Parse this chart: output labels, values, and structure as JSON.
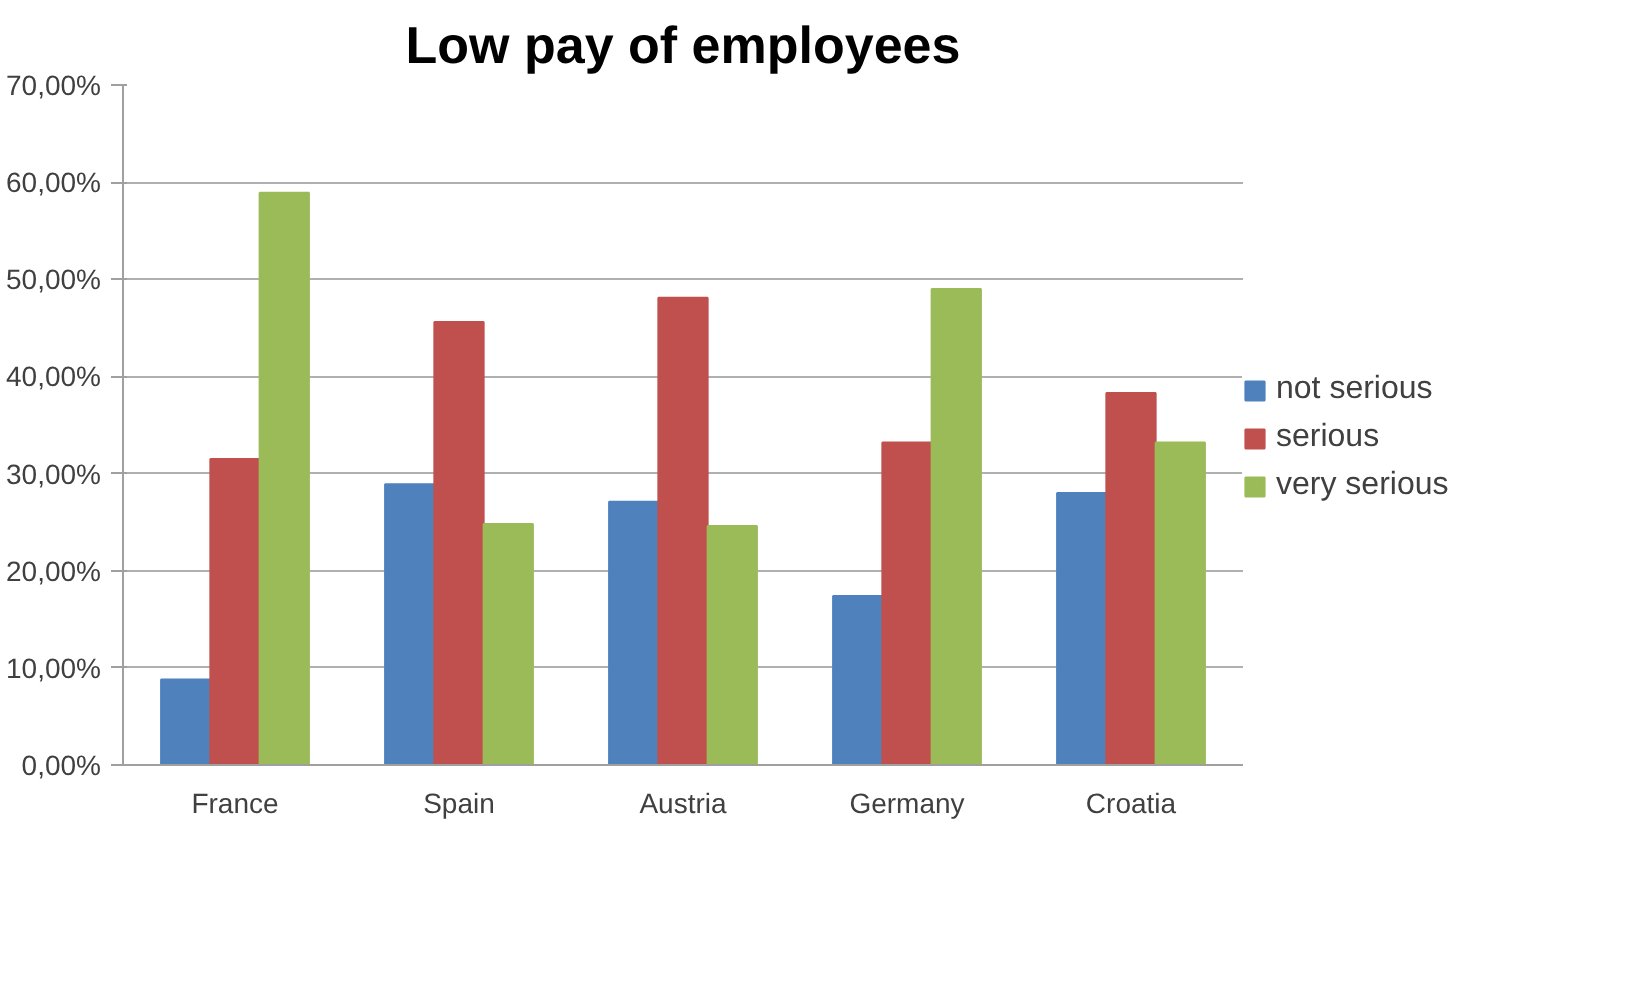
{
  "chart_data": {
    "type": "bar",
    "title": "Low pay of employees",
    "categories": [
      "France",
      "Spain",
      "Austria",
      "Germany",
      "Croatia"
    ],
    "series": [
      {
        "name": "not serious",
        "color": "#4f81bd",
        "values": [
          8.8,
          28.9,
          27.1,
          17.4,
          28.0
        ]
      },
      {
        "name": "serious",
        "color": "#c0504d",
        "values": [
          31.5,
          45.6,
          48.1,
          33.2,
          38.3
        ]
      },
      {
        "name": "very serious",
        "color": "#9bbb59",
        "values": [
          58.9,
          24.8,
          24.6,
          49.0,
          33.2
        ]
      }
    ],
    "ylim": [
      0,
      70
    ],
    "yticks": [
      {
        "value": 0,
        "label": "0,00%"
      },
      {
        "value": 10,
        "label": "10,00%"
      },
      {
        "value": 20,
        "label": "20,00%"
      },
      {
        "value": 30,
        "label": "30,00%"
      },
      {
        "value": 40,
        "label": "40,00%"
      },
      {
        "value": 50,
        "label": "50,00%"
      },
      {
        "value": 60,
        "label": "60,00%"
      },
      {
        "value": 70,
        "label": "70,00%"
      }
    ],
    "grid": "y",
    "legend": "right"
  }
}
